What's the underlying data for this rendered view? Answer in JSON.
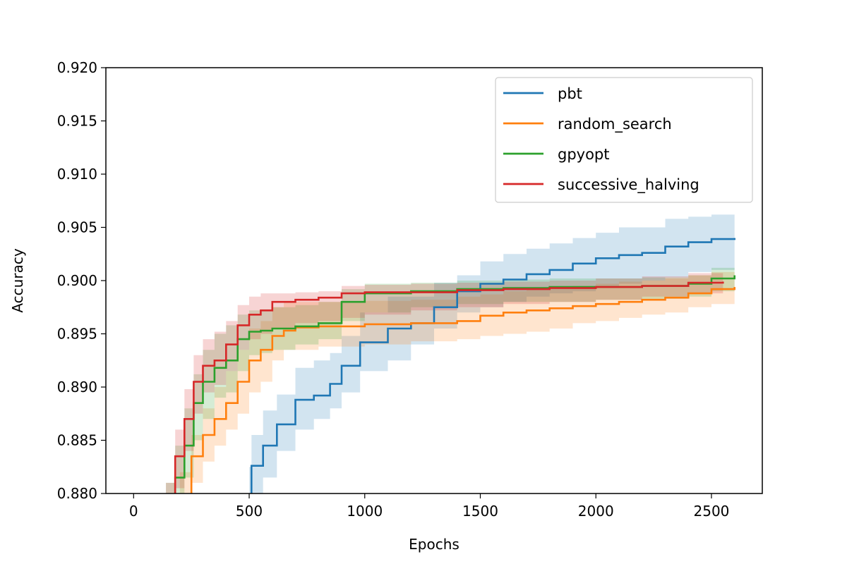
{
  "chart_data": {
    "type": "line",
    "title": "",
    "xlabel": "Epochs",
    "ylabel": "Accuracy",
    "xlim": [
      -120,
      2720
    ],
    "ylim": [
      0.88,
      0.92
    ],
    "xticks": [
      0,
      500,
      1000,
      1500,
      2000,
      2500
    ],
    "xtick_labels": [
      "0",
      "500",
      "1000",
      "1500",
      "2000",
      "2500"
    ],
    "yticks": [
      0.88,
      0.885,
      0.89,
      0.895,
      0.9,
      0.905,
      0.91,
      0.915,
      0.92
    ],
    "ytick_labels": [
      "0.880",
      "0.885",
      "0.890",
      "0.895",
      "0.900",
      "0.905",
      "0.910",
      "0.915",
      "0.920"
    ],
    "grid": false,
    "legend_position": "top-right",
    "band_opacity": 0.2,
    "series": [
      {
        "name": "pbt",
        "color": "#1f77b4",
        "x": [
          500,
          510,
          560,
          620,
          700,
          780,
          850,
          900,
          980,
          1100,
          1200,
          1300,
          1400,
          1500,
          1600,
          1700,
          1800,
          1900,
          2000,
          2100,
          2200,
          2300,
          2400,
          2500,
          2600
        ],
        "y": [
          0.8782,
          0.8826,
          0.8845,
          0.8865,
          0.8888,
          0.8892,
          0.8903,
          0.892,
          0.8942,
          0.8955,
          0.896,
          0.8975,
          0.899,
          0.8997,
          0.9001,
          0.9006,
          0.901,
          0.9016,
          0.9021,
          0.9024,
          0.9026,
          0.9032,
          0.9036,
          0.9039,
          0.904
        ],
        "lower": [
          0.874,
          0.8795,
          0.8815,
          0.884,
          0.886,
          0.887,
          0.888,
          0.8895,
          0.8915,
          0.8925,
          0.894,
          0.8955,
          0.897,
          0.8975,
          0.898,
          0.8985,
          0.8988,
          0.899,
          0.8995,
          0.8997,
          0.9,
          0.9003,
          0.9008,
          0.901,
          0.9015
        ],
        "upper": [
          0.8825,
          0.8855,
          0.8878,
          0.8893,
          0.8918,
          0.8925,
          0.8932,
          0.8948,
          0.897,
          0.8985,
          0.8985,
          0.8998,
          0.9005,
          0.9018,
          0.9025,
          0.903,
          0.9035,
          0.904,
          0.9045,
          0.905,
          0.905,
          0.9058,
          0.906,
          0.9062,
          0.9062
        ]
      },
      {
        "name": "random_search",
        "color": "#ff7f0e",
        "x": [
          150,
          200,
          250,
          300,
          350,
          400,
          450,
          500,
          550,
          600,
          650,
          700,
          800,
          1000,
          1200,
          1400,
          1500,
          1600,
          1700,
          1800,
          1900,
          2000,
          2100,
          2200,
          2300,
          2400,
          2500,
          2600
        ],
        "y": [
          0.8775,
          0.8795,
          0.8835,
          0.8855,
          0.887,
          0.8885,
          0.8905,
          0.8925,
          0.8935,
          0.8948,
          0.8953,
          0.8956,
          0.8957,
          0.8959,
          0.896,
          0.8962,
          0.8967,
          0.897,
          0.8972,
          0.8974,
          0.8976,
          0.8978,
          0.898,
          0.8982,
          0.8984,
          0.8988,
          0.8992,
          0.8994
        ],
        "lower": [
          0.8765,
          0.877,
          0.881,
          0.883,
          0.8845,
          0.886,
          0.8875,
          0.8895,
          0.8905,
          0.8925,
          0.8935,
          0.8935,
          0.8938,
          0.894,
          0.8943,
          0.8945,
          0.8948,
          0.895,
          0.8952,
          0.8955,
          0.896,
          0.8962,
          0.8965,
          0.8968,
          0.897,
          0.8975,
          0.8978,
          0.898
        ],
        "upper": [
          0.88,
          0.882,
          0.8855,
          0.888,
          0.89,
          0.8915,
          0.8935,
          0.8955,
          0.8962,
          0.8975,
          0.898,
          0.898,
          0.898,
          0.8981,
          0.8982,
          0.8985,
          0.8987,
          0.899,
          0.8991,
          0.8993,
          0.8995,
          0.8997,
          0.8999,
          0.9,
          0.9002,
          0.9005,
          0.9008,
          0.901
        ]
      },
      {
        "name": "gpyopt",
        "color": "#2ca02c",
        "x": [
          140,
          180,
          220,
          260,
          300,
          350,
          400,
          450,
          500,
          550,
          600,
          700,
          800,
          900,
          1000,
          1200,
          1400,
          1600,
          1800,
          2000,
          2200,
          2400,
          2500,
          2600
        ],
        "y": [
          0.8785,
          0.8815,
          0.8845,
          0.8885,
          0.8905,
          0.8918,
          0.8925,
          0.8945,
          0.8952,
          0.8953,
          0.8955,
          0.8957,
          0.896,
          0.898,
          0.8988,
          0.899,
          0.8992,
          0.8993,
          0.8994,
          0.8994,
          0.8995,
          0.8997,
          0.9002,
          0.9005
        ],
        "lower": [
          0.8765,
          0.879,
          0.8815,
          0.885,
          0.887,
          0.889,
          0.8895,
          0.8915,
          0.893,
          0.8932,
          0.8935,
          0.894,
          0.8945,
          0.8962,
          0.897,
          0.8975,
          0.8978,
          0.898,
          0.898,
          0.8982,
          0.8983,
          0.8985,
          0.899,
          0.8995
        ],
        "upper": [
          0.881,
          0.8845,
          0.888,
          0.8912,
          0.8935,
          0.895,
          0.8958,
          0.8968,
          0.8972,
          0.8973,
          0.8975,
          0.8977,
          0.898,
          0.8992,
          0.8997,
          0.8998,
          0.9,
          0.9001,
          0.9002,
          0.9002,
          0.9003,
          0.9005,
          0.9012,
          0.9015
        ]
      },
      {
        "name": "successive_halving",
        "color": "#d62728",
        "x": [
          140,
          180,
          220,
          260,
          300,
          350,
          400,
          450,
          500,
          550,
          600,
          700,
          800,
          900,
          1000,
          1200,
          1400,
          1600,
          1800,
          2000,
          2200,
          2400,
          2550
        ],
        "y": [
          0.8785,
          0.8835,
          0.887,
          0.8905,
          0.892,
          0.8925,
          0.894,
          0.8958,
          0.8968,
          0.8972,
          0.898,
          0.8982,
          0.8984,
          0.8988,
          0.8989,
          0.8989,
          0.8991,
          0.8992,
          0.8993,
          0.8994,
          0.8995,
          0.8998,
          0.8999
        ],
        "lower": [
          0.876,
          0.8805,
          0.884,
          0.8875,
          0.8895,
          0.8902,
          0.8915,
          0.8935,
          0.8945,
          0.895,
          0.8955,
          0.896,
          0.8962,
          0.8965,
          0.8968,
          0.8972,
          0.8975,
          0.8978,
          0.898,
          0.8982,
          0.8985,
          0.8988,
          0.899
        ],
        "upper": [
          0.881,
          0.886,
          0.8898,
          0.893,
          0.8945,
          0.8952,
          0.8962,
          0.8977,
          0.8985,
          0.8988,
          0.8988,
          0.8989,
          0.899,
          0.8995,
          0.8996,
          0.8997,
          0.8998,
          0.8999,
          0.9,
          0.9002,
          0.9004,
          0.9007,
          0.9008
        ]
      }
    ]
  }
}
